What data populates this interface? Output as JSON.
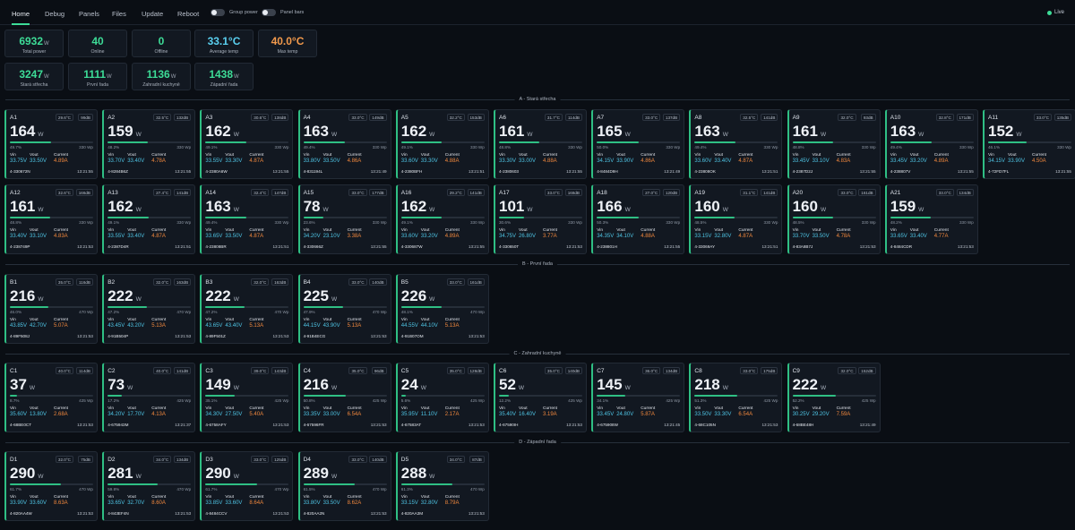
{
  "nav": {
    "tabs": [
      {
        "label": "Home",
        "active": true
      },
      {
        "label": "Debug",
        "active": false
      },
      {
        "label": "Panels",
        "active": false
      },
      {
        "label": "Files",
        "active": false
      },
      {
        "label": "Update",
        "active": false
      },
      {
        "label": "Reboot",
        "active": false
      }
    ],
    "toggles": [
      {
        "label": "Group power"
      },
      {
        "label": "Panel bars"
      }
    ],
    "live": "Live"
  },
  "stats": [
    {
      "value": "6932",
      "unit": "W",
      "label": "Total power",
      "color": "green"
    },
    {
      "value": "40",
      "unit": "",
      "label": "Online",
      "color": "green"
    },
    {
      "value": "0",
      "unit": "",
      "label": "Offline",
      "color": "green"
    },
    {
      "value": "33.1°C",
      "unit": "",
      "label": "Average temp",
      "color": "blue"
    },
    {
      "value": "40.0°C",
      "unit": "",
      "label": "Max temp",
      "color": "orange"
    },
    {
      "value": "3247",
      "unit": "W",
      "label": "Stará střecha",
      "color": "green"
    },
    {
      "value": "1111",
      "unit": "W",
      "label": "První řada",
      "color": "green"
    },
    {
      "value": "1136",
      "unit": "W",
      "label": "Zahradní kuchyně",
      "color": "green"
    },
    {
      "value": "1438",
      "unit": "W",
      "label": "Západní řada",
      "color": "green"
    }
  ],
  "labels": {
    "vin": "Vin",
    "vout": "Vout",
    "current": "Current",
    "unit": "W"
  },
  "groups": [
    {
      "title": "A - Stará střecha",
      "panels": [
        {
          "id": "A1",
          "temp": "29.6°C",
          "signal": "99dB",
          "power": "164",
          "pct": "49.7%",
          "pct_value": 49.7,
          "rated": "330 Wp",
          "vin": "33.75V",
          "vout": "33.50V",
          "current": "4.89A",
          "serial": "4-330672N",
          "time": "13:21:55"
        },
        {
          "id": "A2",
          "temp": "32.5°C",
          "signal": "132dB",
          "power": "159",
          "pct": "48.2%",
          "pct_value": 48.2,
          "rated": "330 Wp",
          "vin": "33.70V",
          "vout": "33.40V",
          "current": "4.78A",
          "serial": "4-8284B6Z",
          "time": "13:21:55"
        },
        {
          "id": "A3",
          "temp": "30.6°C",
          "signal": "138dB",
          "power": "162",
          "pct": "49.1%",
          "pct_value": 49.1,
          "rated": "330 Wp",
          "vin": "33.55V",
          "vout": "33.30V",
          "current": "4.87A",
          "serial": "4-2380A6W",
          "time": "13:21:55"
        },
        {
          "id": "A4",
          "temp": "33.0°C",
          "signal": "149dB",
          "power": "163",
          "pct": "49.4%",
          "pct_value": 49.4,
          "rated": "330 Wp",
          "vin": "33.80V",
          "vout": "33.50V",
          "current": "4.86A",
          "serial": "4-831194L",
          "time": "13:21:49"
        },
        {
          "id": "A5",
          "temp": "32.2°C",
          "signal": "153dB",
          "power": "162",
          "pct": "49.1%",
          "pct_value": 49.1,
          "rated": "330 Wp",
          "vin": "33.60V",
          "vout": "33.30V",
          "current": "4.88A",
          "serial": "4-2380BFH",
          "time": "13:21:51"
        },
        {
          "id": "A6",
          "temp": "31.7°C",
          "signal": "114dB",
          "power": "161",
          "pct": "48.8%",
          "pct_value": 48.8,
          "rated": "330 Wp",
          "vin": "33.30V",
          "vout": "33.00V",
          "current": "4.88A",
          "serial": "4-2380603",
          "time": "13:21:55"
        },
        {
          "id": "A7",
          "temp": "33.0°C",
          "signal": "137dB",
          "power": "165",
          "pct": "50.0%",
          "pct_value": 50.0,
          "rated": "330 Wp",
          "vin": "34.15V",
          "vout": "33.90V",
          "current": "4.86A",
          "serial": "4-8484D9H",
          "time": "13:21:49"
        },
        {
          "id": "A8",
          "temp": "32.5°C",
          "signal": "141dB",
          "power": "163",
          "pct": "49.4%",
          "pct_value": 49.4,
          "rated": "330 Wp",
          "vin": "33.60V",
          "vout": "33.40V",
          "current": "4.87A",
          "serial": "4-23808OK",
          "time": "13:21:51"
        },
        {
          "id": "A9",
          "temp": "32.0°C",
          "signal": "93dB",
          "power": "161",
          "pct": "48.8%",
          "pct_value": 48.8,
          "rated": "330 Wp",
          "vin": "33.45V",
          "vout": "33.10V",
          "current": "4.83A",
          "serial": "4-2387D2J",
          "time": "13:21:55"
        },
        {
          "id": "A10",
          "temp": "32.8°C",
          "signal": "171dB",
          "power": "163",
          "pct": "49.4%",
          "pct_value": 49.4,
          "rated": "330 Wp",
          "vin": "33.45V",
          "vout": "33.20V",
          "current": "4.89A",
          "serial": "4-238807V",
          "time": "13:21:55"
        },
        {
          "id": "A11",
          "temp": "33.0°C",
          "signal": "135dB",
          "power": "152",
          "pct": "46.1%",
          "pct_value": 46.1,
          "rated": "330 Wp",
          "vin": "34.15V",
          "vout": "33.90V",
          "current": "4.50A",
          "serial": "4-72FD7FL",
          "time": "13:21:55"
        },
        {
          "id": "A12",
          "temp": "32.6°C",
          "signal": "166dB",
          "power": "161",
          "pct": "48.8%",
          "pct_value": 48.8,
          "rated": "330 Wp",
          "vin": "33.40V",
          "vout": "33.10V",
          "current": "4.83A",
          "serial": "4-238749P",
          "time": "13:21:53"
        },
        {
          "id": "A13",
          "temp": "27.4°C",
          "signal": "141dB",
          "power": "162",
          "pct": "49.1%",
          "pct_value": 49.1,
          "rated": "330 Wp",
          "vin": "33.55V",
          "vout": "33.40V",
          "current": "4.87A",
          "serial": "4-2387D4R",
          "time": "13:21:51"
        },
        {
          "id": "A14",
          "temp": "32.4°C",
          "signal": "147dB",
          "power": "163",
          "pct": "49.4%",
          "pct_value": 49.4,
          "rated": "330 Wp",
          "vin": "33.65V",
          "vout": "33.50V",
          "current": "4.87A",
          "serial": "4-23808BR",
          "time": "13:21:51"
        },
        {
          "id": "A15",
          "temp": "33.0°C",
          "signal": "177dB",
          "power": "78",
          "pct": "23.6%",
          "pct_value": 23.6,
          "rated": "330 Wp",
          "vin": "34.20V",
          "vout": "23.10V",
          "current": "3.38A",
          "serial": "4-330666Z",
          "time": "13:21:55"
        },
        {
          "id": "A16",
          "temp": "29.2°C",
          "signal": "141dB",
          "power": "162",
          "pct": "49.1%",
          "pct_value": 49.1,
          "rated": "330 Wp",
          "vin": "33.60V",
          "vout": "33.20V",
          "current": "4.89A",
          "serial": "4-330687W",
          "time": "13:21:55"
        },
        {
          "id": "A17",
          "temp": "33.0°C",
          "signal": "168dB",
          "power": "101",
          "pct": "30.6%",
          "pct_value": 30.6,
          "rated": "330 Wp",
          "vin": "34.75V",
          "vout": "26.80V",
          "current": "3.77A",
          "serial": "4-330650T",
          "time": "13:21:53"
        },
        {
          "id": "A18",
          "temp": "27.0°C",
          "signal": "120dB",
          "power": "166",
          "pct": "50.3%",
          "pct_value": 50.3,
          "rated": "330 Wp",
          "vin": "34.35V",
          "vout": "34.10V",
          "current": "4.88A",
          "serial": "4-238801H",
          "time": "13:21:55"
        },
        {
          "id": "A19",
          "temp": "31.1°C",
          "signal": "141dB",
          "power": "160",
          "pct": "48.5%",
          "pct_value": 48.5,
          "rated": "330 Wp",
          "vin": "33.15V",
          "vout": "32.80V",
          "current": "4.87A",
          "serial": "4-33069AY",
          "time": "13:21:51"
        },
        {
          "id": "A20",
          "temp": "33.0°C",
          "signal": "161dB",
          "power": "160",
          "pct": "48.5%",
          "pct_value": 48.5,
          "rated": "330 Wp",
          "vin": "33.70V",
          "vout": "33.50V",
          "current": "4.78A",
          "serial": "4-83A8B7J",
          "time": "13:21:53"
        },
        {
          "id": "A21",
          "temp": "33.0°C",
          "signal": "134dB",
          "power": "159",
          "pct": "48.2%",
          "pct_value": 48.2,
          "rated": "330 Wp",
          "vin": "33.65V",
          "vout": "33.40V",
          "current": "4.77A",
          "serial": "4-8484CDR",
          "time": "13:21:53"
        }
      ]
    },
    {
      "title": "B - První řada",
      "panels": [
        {
          "id": "B1",
          "temp": "35.0°C",
          "signal": "116dB",
          "power": "216",
          "pct": "46.0%",
          "pct_value": 46.0,
          "rated": "470 Wp",
          "vin": "43.85V",
          "vout": "42.70V",
          "current": "5.07A",
          "serial": "4-89F508J",
          "time": "13:21:53"
        },
        {
          "id": "B2",
          "temp": "32.0°C",
          "signal": "163dB",
          "power": "222",
          "pct": "47.2%",
          "pct_value": 47.2,
          "rated": "470 Wp",
          "vin": "43.45V",
          "vout": "43.20V",
          "current": "5.13A",
          "serial": "4-91B504P",
          "time": "13:21:53"
        },
        {
          "id": "B3",
          "temp": "32.0°C",
          "signal": "163dB",
          "power": "222",
          "pct": "47.2%",
          "pct_value": 47.2,
          "rated": "470 Wp",
          "vin": "43.65V",
          "vout": "43.40V",
          "current": "5.13A",
          "serial": "4-89F501Z",
          "time": "13:21:53"
        },
        {
          "id": "B4",
          "temp": "33.0°C",
          "signal": "140dB",
          "power": "225",
          "pct": "47.9%",
          "pct_value": 47.9,
          "rated": "470 Wp",
          "vin": "44.15V",
          "vout": "43.90V",
          "current": "5.13A",
          "serial": "4-91B4ECG",
          "time": "13:21:53"
        },
        {
          "id": "B5",
          "temp": "33.0°C",
          "signal": "161dB",
          "power": "226",
          "pct": "48.1%",
          "pct_value": 48.1,
          "rated": "470 Wp",
          "vin": "44.55V",
          "vout": "44.10V",
          "current": "5.13A",
          "serial": "4-91B07OM",
          "time": "13:21:53"
        }
      ]
    },
    {
      "title": "C - Zahradní kuchyně",
      "panels": [
        {
          "id": "C1",
          "temp": "40.0°C",
          "signal": "114dB",
          "power": "37",
          "pct": "8.7%",
          "pct_value": 8.7,
          "rated": "425 Wp",
          "vin": "35.60V",
          "vout": "13.80V",
          "current": "2.68A",
          "serial": "4-68BE0CT",
          "time": "13:21:53"
        },
        {
          "id": "C2",
          "temp": "40.0°C",
          "signal": "141dB",
          "power": "73",
          "pct": "17.2%",
          "pct_value": 17.2,
          "rated": "425 Wp",
          "vin": "34.20V",
          "vout": "17.70V",
          "current": "4.13A",
          "serial": "4-675943M",
          "time": "13:21:37"
        },
        {
          "id": "C3",
          "temp": "39.0°C",
          "signal": "143dB",
          "power": "149",
          "pct": "35.1%",
          "pct_value": 35.1,
          "rated": "425 Wp",
          "vin": "34.30V",
          "vout": "27.50V",
          "current": "5.40A",
          "serial": "4-6758AFY",
          "time": "13:21:53"
        },
        {
          "id": "C4",
          "temp": "35.0°C",
          "signal": "96dB",
          "power": "216",
          "pct": "50.8%",
          "pct_value": 50.8,
          "rated": "425 Wp",
          "vin": "33.35V",
          "vout": "33.00V",
          "current": "6.54A",
          "serial": "4-67596FR",
          "time": "13:21:53"
        },
        {
          "id": "C5",
          "temp": "35.0°C",
          "signal": "128dB",
          "power": "24",
          "pct": "5.6%",
          "pct_value": 5.6,
          "rated": "425 Wp",
          "vin": "35.95V",
          "vout": "11.10V",
          "current": "2.17A",
          "serial": "4-67583AT",
          "time": "13:21:53"
        },
        {
          "id": "C6",
          "temp": "35.0°C",
          "signal": "140dB",
          "power": "52",
          "pct": "12.2%",
          "pct_value": 12.2,
          "rated": "425 Wp",
          "vin": "35.40V",
          "vout": "16.40V",
          "current": "3.19A",
          "serial": "4-67590IH",
          "time": "13:21:53"
        },
        {
          "id": "C7",
          "temp": "36.0°C",
          "signal": "134dB",
          "power": "145",
          "pct": "34.1%",
          "pct_value": 34.1,
          "rated": "425 Wp",
          "vin": "33.45V",
          "vout": "24.80V",
          "current": "5.87A",
          "serial": "4-675908W",
          "time": "13:21:45"
        },
        {
          "id": "C8",
          "temp": "33.0°C",
          "signal": "175dB",
          "power": "218",
          "pct": "51.3%",
          "pct_value": 51.3,
          "rated": "425 Wp",
          "vin": "33.50V",
          "vout": "33.30V",
          "current": "6.54A",
          "serial": "4-68C105N",
          "time": "13:21:53"
        },
        {
          "id": "C9",
          "temp": "32.0°C",
          "signal": "152dB",
          "power": "222",
          "pct": "52.2%",
          "pct_value": 52.2,
          "rated": "425 Wp",
          "vin": "30.25V",
          "vout": "29.20V",
          "current": "7.59A",
          "serial": "4-68BE48H",
          "time": "13:21:49"
        }
      ]
    },
    {
      "title": "D - Západní řada",
      "panels": [
        {
          "id": "D1",
          "temp": "32.0°C",
          "signal": "75dB",
          "power": "290",
          "pct": "61.7%",
          "pct_value": 61.7,
          "rated": "470 Wp",
          "vin": "33.90V",
          "vout": "33.60V",
          "current": "8.63A",
          "serial": "4-820AA4W",
          "time": "13:21:53"
        },
        {
          "id": "D2",
          "temp": "34.0°C",
          "signal": "134dB",
          "power": "281",
          "pct": "59.8%",
          "pct_value": 59.8,
          "rated": "470 Wp",
          "vin": "33.65V",
          "vout": "32.70V",
          "current": "8.60A",
          "serial": "4-843EF4N",
          "time": "13:21:53"
        },
        {
          "id": "D3",
          "temp": "33.0°C",
          "signal": "125dB",
          "power": "290",
          "pct": "61.7%",
          "pct_value": 61.7,
          "rated": "470 Wp",
          "vin": "33.85V",
          "vout": "33.60V",
          "current": "8.64A",
          "serial": "4-8484CCV",
          "time": "13:21:53"
        },
        {
          "id": "D4",
          "temp": "33.0°C",
          "signal": "140dB",
          "power": "289",
          "pct": "61.5%",
          "pct_value": 61.5,
          "rated": "470 Wp",
          "vin": "33.80V",
          "vout": "33.50V",
          "current": "8.62A",
          "serial": "4-820AA2N",
          "time": "13:21:53"
        },
        {
          "id": "D5",
          "temp": "34.0°C",
          "signal": "87dB",
          "power": "288",
          "pct": "61.3%",
          "pct_value": 61.3,
          "rated": "470 Wp",
          "vin": "33.15V",
          "vout": "32.80V",
          "current": "8.79A",
          "serial": "4-820AA3M",
          "time": "13:21:53"
        }
      ]
    }
  ]
}
